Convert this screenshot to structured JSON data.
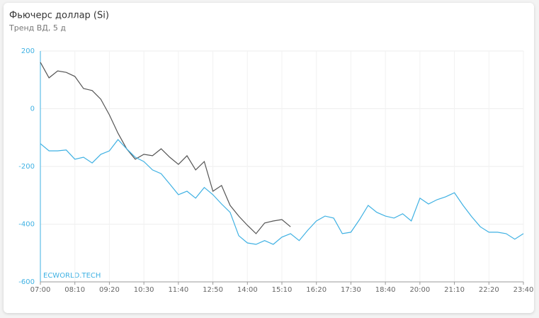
{
  "chart_data": {
    "type": "line",
    "title": "Фьючерс доллар (Si)",
    "subtitle": "Тренд ВД, 5 д",
    "watermark": "ECWORLD.TECH",
    "categories": [
      "07:00",
      null,
      null,
      null,
      "08:10",
      null,
      null,
      null,
      "09:20",
      null,
      null,
      null,
      "10:30",
      null,
      null,
      null,
      "11:40",
      null,
      null,
      null,
      "12:50",
      null,
      null,
      null,
      "14:00",
      null,
      null,
      null,
      "15:10",
      null,
      null,
      null,
      "16:20",
      null,
      null,
      null,
      "17:30",
      null,
      null,
      null,
      "18:40",
      null,
      null,
      null,
      "20:00",
      null,
      null,
      null,
      "21:10",
      null,
      null,
      null,
      "22:20",
      null,
      null,
      null,
      "23:40"
    ],
    "ylim": [
      -600,
      200
    ],
    "yticks": [
      200,
      0,
      -200,
      -400,
      -600
    ],
    "grid": true,
    "series": [
      {
        "color": "#555555",
        "values": [
          161,
          107,
          131,
          126,
          112,
          70,
          63,
          33,
          -21,
          -85,
          -139,
          -175,
          -158,
          -163,
          -139,
          -168,
          -193,
          -163,
          -212,
          -183,
          -286,
          -266,
          -335,
          -372,
          -404,
          -433,
          -396,
          -389,
          -384,
          -409,
          null,
          null,
          null,
          null,
          null,
          null,
          null,
          null,
          null,
          null,
          null,
          null,
          null,
          null,
          null,
          null,
          null,
          null,
          null,
          null,
          null,
          null,
          null,
          null,
          null,
          null,
          null
        ]
      },
      {
        "color": "#3fb1e3",
        "values": [
          -121,
          -146,
          -146,
          -143,
          -175,
          -168,
          -188,
          -158,
          -146,
          -107,
          -139,
          -168,
          -183,
          -212,
          -225,
          -261,
          -298,
          -286,
          -310,
          -273,
          -298,
          -330,
          -359,
          -440,
          -465,
          -470,
          -457,
          -470,
          -445,
          -433,
          -457,
          -421,
          -389,
          -372,
          -379,
          -433,
          -428,
          -384,
          -335,
          -359,
          -372,
          -379,
          -364,
          -389,
          -310,
          -330,
          -315,
          -305,
          -291,
          -335,
          -374,
          -409,
          -428,
          -428,
          -433,
          -452,
          -433
        ]
      }
    ]
  }
}
